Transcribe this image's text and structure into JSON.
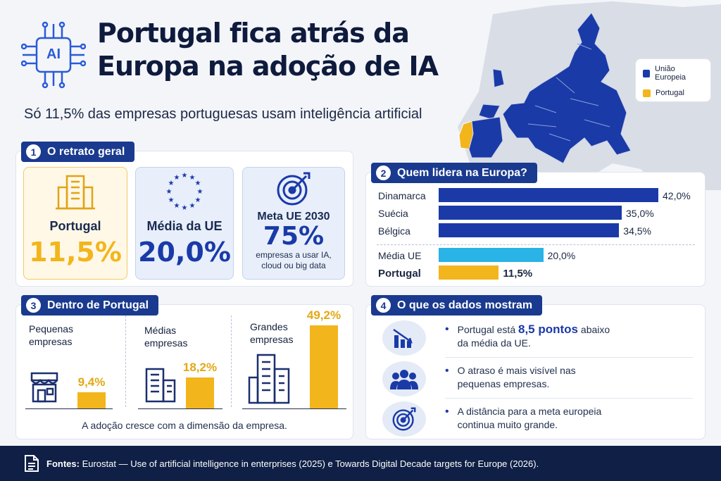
{
  "header": {
    "title": "Portugal fica atrás da\nEuropa na adoção de IA",
    "subtitle": "Só 11,5% das empresas portuguesas usam inteligência artificial",
    "ai_badge": "AI"
  },
  "map": {
    "legend": [
      {
        "label": "União Europeia",
        "color": "#1a3aa8"
      },
      {
        "label": "Portugal",
        "color": "#f2b51c"
      }
    ]
  },
  "section1": {
    "number": "1",
    "title": "O retrato geral",
    "cards": [
      {
        "label": "Portugal",
        "value": "11,5%"
      },
      {
        "label": "Média da UE",
        "value": "20,0%"
      },
      {
        "label": "Meta UE 2030",
        "value": "75%",
        "note": "empresas a usar IA,\ncloud ou big data"
      }
    ]
  },
  "section2": {
    "number": "2",
    "title": "Quem lidera na Europa?",
    "bars": [
      {
        "name": "Dinamarca",
        "value": 42.0,
        "label": "42,0%",
        "color": "#1b3aa8",
        "bold": false
      },
      {
        "name": "Suécia",
        "value": 35.0,
        "label": "35,0%",
        "color": "#1b3aa8",
        "bold": false
      },
      {
        "name": "Bélgica",
        "value": 34.5,
        "label": "34,5%",
        "color": "#1b3aa8",
        "bold": false
      },
      {
        "name": "Média UE",
        "value": 20.0,
        "label": "20,0%",
        "color": "#29b3e6",
        "bold": false
      },
      {
        "name": "Portugal",
        "value": 11.5,
        "label": "11,5%",
        "color": "#f2b51c",
        "bold": true
      }
    ]
  },
  "section3": {
    "number": "3",
    "title": "Dentro de Portugal",
    "groups": [
      {
        "label": "Pequenas\nempresas",
        "value": 9.4,
        "value_label": "9,4%"
      },
      {
        "label": "Médias\nempresas",
        "value": 18.2,
        "value_label": "18,2%"
      },
      {
        "label": "Grandes\nempresas",
        "value": 49.2,
        "value_label": "49,2%"
      }
    ],
    "caption": "A adoção cresce com a dimensão da empresa."
  },
  "section4": {
    "number": "4",
    "title": "O que os dados mostram",
    "items": [
      {
        "pre": "Portugal está ",
        "highlight": "8,5 pontos",
        "post": " abaixo\nda média da UE."
      },
      {
        "pre": "O atraso é mais visível nas\npequenas empresas.",
        "highlight": "",
        "post": ""
      },
      {
        "pre": "A distância para a meta europeia\ncontinua muito grande.",
        "highlight": "",
        "post": ""
      }
    ]
  },
  "footer": {
    "label": "Fontes:",
    "text": " Eurostat — Use of artificial intelligence in enterprises (2025) e Towards Digital Decade targets for Europe (2026)."
  }
}
